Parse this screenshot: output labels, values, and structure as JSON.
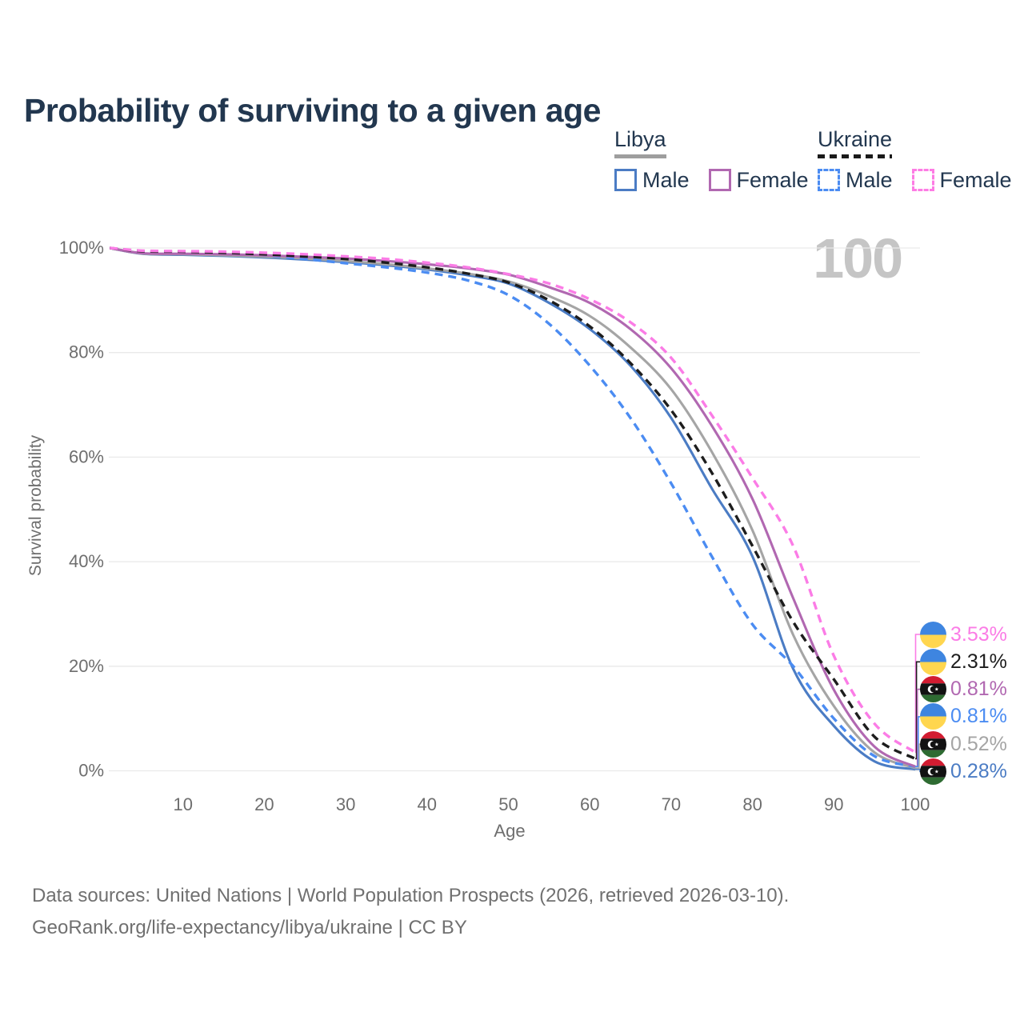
{
  "page": {
    "title": "Probability of surviving to a given age",
    "watermark": "100"
  },
  "legend": {
    "groups": [
      {
        "label": "Libya",
        "sample_style": "solid",
        "sample_color": "#9e9e9e",
        "items": [
          {
            "label": "Male",
            "color": "#4b7cc4",
            "dashed": false
          },
          {
            "label": "Female",
            "color": "#b168b1",
            "dashed": false
          }
        ]
      },
      {
        "label": "Ukraine",
        "sample_style": "dashed",
        "sample_color": "#1a1a1a",
        "items": [
          {
            "label": "Male",
            "color": "#4b8cf2",
            "dashed": true
          },
          {
            "label": "Female",
            "color": "#fd7ce4",
            "dashed": true
          }
        ]
      }
    ]
  },
  "chart_data": {
    "type": "line",
    "title": "Probability of surviving to a given age",
    "xlabel": "Age",
    "ylabel": "Survival probability",
    "xlim": [
      0,
      100
    ],
    "ylim": [
      0,
      100
    ],
    "grid": true,
    "legend_position": "top-right",
    "x_ticks": [
      10,
      20,
      30,
      40,
      50,
      60,
      70,
      80,
      90,
      100
    ],
    "y_ticks": [
      0,
      20,
      40,
      60,
      80,
      100
    ],
    "y_tick_suffix": "%",
    "ages": [
      0,
      5,
      10,
      15,
      20,
      25,
      30,
      35,
      40,
      45,
      50,
      55,
      60,
      65,
      70,
      75,
      80,
      85,
      90,
      95,
      100
    ],
    "series": [
      {
        "name": "Ukraine Female",
        "country": "Ukraine",
        "group": "Female",
        "flag": "ukraine",
        "color": "#fb7ce6",
        "dashed": true,
        "end_label": "3.53%",
        "values": [
          100,
          99.5,
          99.4,
          99.3,
          99.1,
          98.8,
          98.4,
          97.9,
          97.2,
          96.3,
          95.0,
          93.2,
          90.2,
          85.8,
          79.0,
          68.0,
          56.0,
          43.0,
          22.0,
          9.0,
          3.53
        ]
      },
      {
        "name": "Ukraine",
        "country": "Ukraine",
        "group": "Both sexes",
        "flag": "ukraine",
        "color": "#1d1d1d",
        "dashed": true,
        "end_label": "2.31%",
        "values": [
          100,
          99.4,
          99.3,
          99.1,
          98.8,
          98.4,
          97.9,
          97.2,
          96.3,
          95.1,
          93.4,
          90.0,
          85.0,
          78.0,
          69.0,
          57.0,
          43.0,
          28.5,
          17.5,
          6.5,
          2.31
        ]
      },
      {
        "name": "Libya Female",
        "country": "Libya",
        "group": "Female",
        "flag": "libya",
        "color": "#b168b1",
        "dashed": false,
        "end_label": "0.81%",
        "values": [
          100,
          99.0,
          98.9,
          98.8,
          98.6,
          98.3,
          98.0,
          97.5,
          96.9,
          96.1,
          94.9,
          92.5,
          89.5,
          84.5,
          77.0,
          66.0,
          52.0,
          33.0,
          15.5,
          4.6,
          0.81
        ]
      },
      {
        "name": "Ukraine Male",
        "country": "Ukraine",
        "group": "Male",
        "flag": "ukraine",
        "color": "#4b8cf2",
        "dashed": true,
        "end_label": "0.81%",
        "values": [
          100,
          99.3,
          99.2,
          99.0,
          98.6,
          97.9,
          97.1,
          96.3,
          95.3,
          93.8,
          91.0,
          85.5,
          77.5,
          67.5,
          55.0,
          41.0,
          28.0,
          20.0,
          10.0,
          2.8,
          0.81
        ]
      },
      {
        "name": "Libya",
        "country": "Libya",
        "group": "Both sexes",
        "flag": "libya",
        "color": "#a5a5a5",
        "dashed": false,
        "end_label": "0.52%",
        "values": [
          100,
          98.95,
          98.8,
          98.6,
          98.35,
          98.0,
          97.5,
          96.9,
          96.1,
          95.1,
          93.6,
          90.8,
          87.0,
          81.0,
          73.0,
          61.0,
          46.0,
          26.0,
          12.4,
          3.5,
          0.52
        ]
      },
      {
        "name": "Libya Male",
        "country": "Libya",
        "group": "Male",
        "flag": "libya",
        "color": "#4b7cc4",
        "dashed": false,
        "end_label": "0.28%",
        "values": [
          100,
          98.9,
          98.7,
          98.5,
          98.2,
          97.8,
          97.3,
          96.7,
          95.9,
          94.8,
          93.2,
          89.5,
          84.5,
          77.5,
          67.5,
          54.0,
          41.0,
          19.5,
          8.6,
          1.8,
          0.28
        ]
      }
    ]
  },
  "footer": {
    "line1": "Data sources: United Nations | World Population Prospects (2026, retrieved 2026-03-10).",
    "line2": "GeoRank.org/life-expectancy/libya/ukraine | CC BY"
  },
  "flag_colors": {
    "ukraine_blue": "#3e85e0",
    "ukraine_yellow": "#ffd64f",
    "libya_red": "#d21c31",
    "libya_black": "#121212",
    "libya_green": "#2e6b32"
  }
}
